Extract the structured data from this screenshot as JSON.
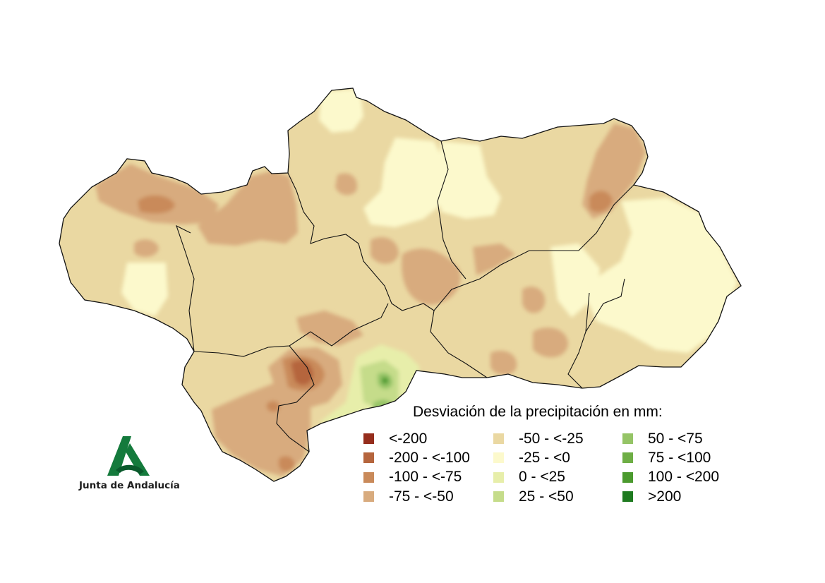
{
  "logo": {
    "text": "Junta de Andalucía",
    "mark_colors": [
      "#147a3c",
      "#0a5a2c"
    ]
  },
  "legend": {
    "title": "Desviación de la precipitación en mm:",
    "columns": [
      [
        {
          "label": "<-200",
          "color": "#952d1c"
        },
        {
          "label": "-200 - <-100",
          "color": "#b5653d"
        },
        {
          "label": "-100 - <-75",
          "color": "#c98a5a"
        },
        {
          "label": "-75 - <-50",
          "color": "#d8ab7e"
        }
      ],
      [
        {
          "label": "-50 - <-25",
          "color": "#ead8a2"
        },
        {
          "label": "-25 - <0",
          "color": "#fcf9cc"
        },
        {
          "label": "0 - <25",
          "color": "#e7eeaa"
        },
        {
          "label": "25 - <50",
          "color": "#c5dc8a"
        }
      ],
      [
        {
          "label": "50 - <75",
          "color": "#95c466"
        },
        {
          "label": "75 - <100",
          "color": "#6eae45"
        },
        {
          "label": "100 - <200",
          "color": "#4b9a2e"
        },
        {
          "label": ">200",
          "color": "#1f7b20"
        }
      ]
    ]
  },
  "map": {
    "base_color": "#ead8a2",
    "border_color": "#111111"
  }
}
